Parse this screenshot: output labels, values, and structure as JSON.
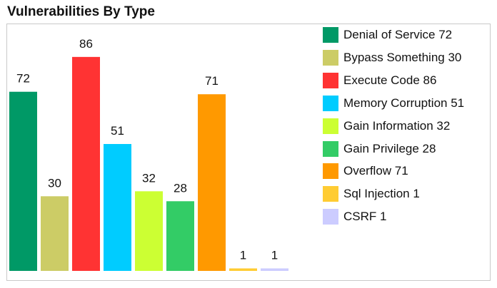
{
  "chart_data": {
    "type": "bar",
    "title": "Vulnerabilities By Type",
    "categories": [
      "Denial of Service",
      "Bypass Something",
      "Execute Code",
      "Memory Corruption",
      "Gain Information",
      "Gain Privilege",
      "Overflow",
      "Sql Injection",
      "CSRF"
    ],
    "values": [
      72,
      30,
      86,
      51,
      32,
      28,
      71,
      1,
      1
    ],
    "legend_labels": [
      "Denial of Service 72",
      "Bypass Something 30",
      "Execute Code 86",
      "Memory Corruption 51",
      "Gain Information 32",
      "Gain Privilege 28",
      "Overflow 71",
      "Sql Injection 1",
      "CSRF 1"
    ],
    "data_labels": [
      "72",
      "30",
      "86",
      "51",
      "32",
      "28",
      "71",
      "1",
      "1"
    ],
    "colors": [
      "#009966",
      "#cccc66",
      "#ff3333",
      "#00ccff",
      "#ccff33",
      "#33cc66",
      "#ff9900",
      "#ffcc33",
      "#ccccff"
    ],
    "legend_position": "right",
    "grid": false
  }
}
